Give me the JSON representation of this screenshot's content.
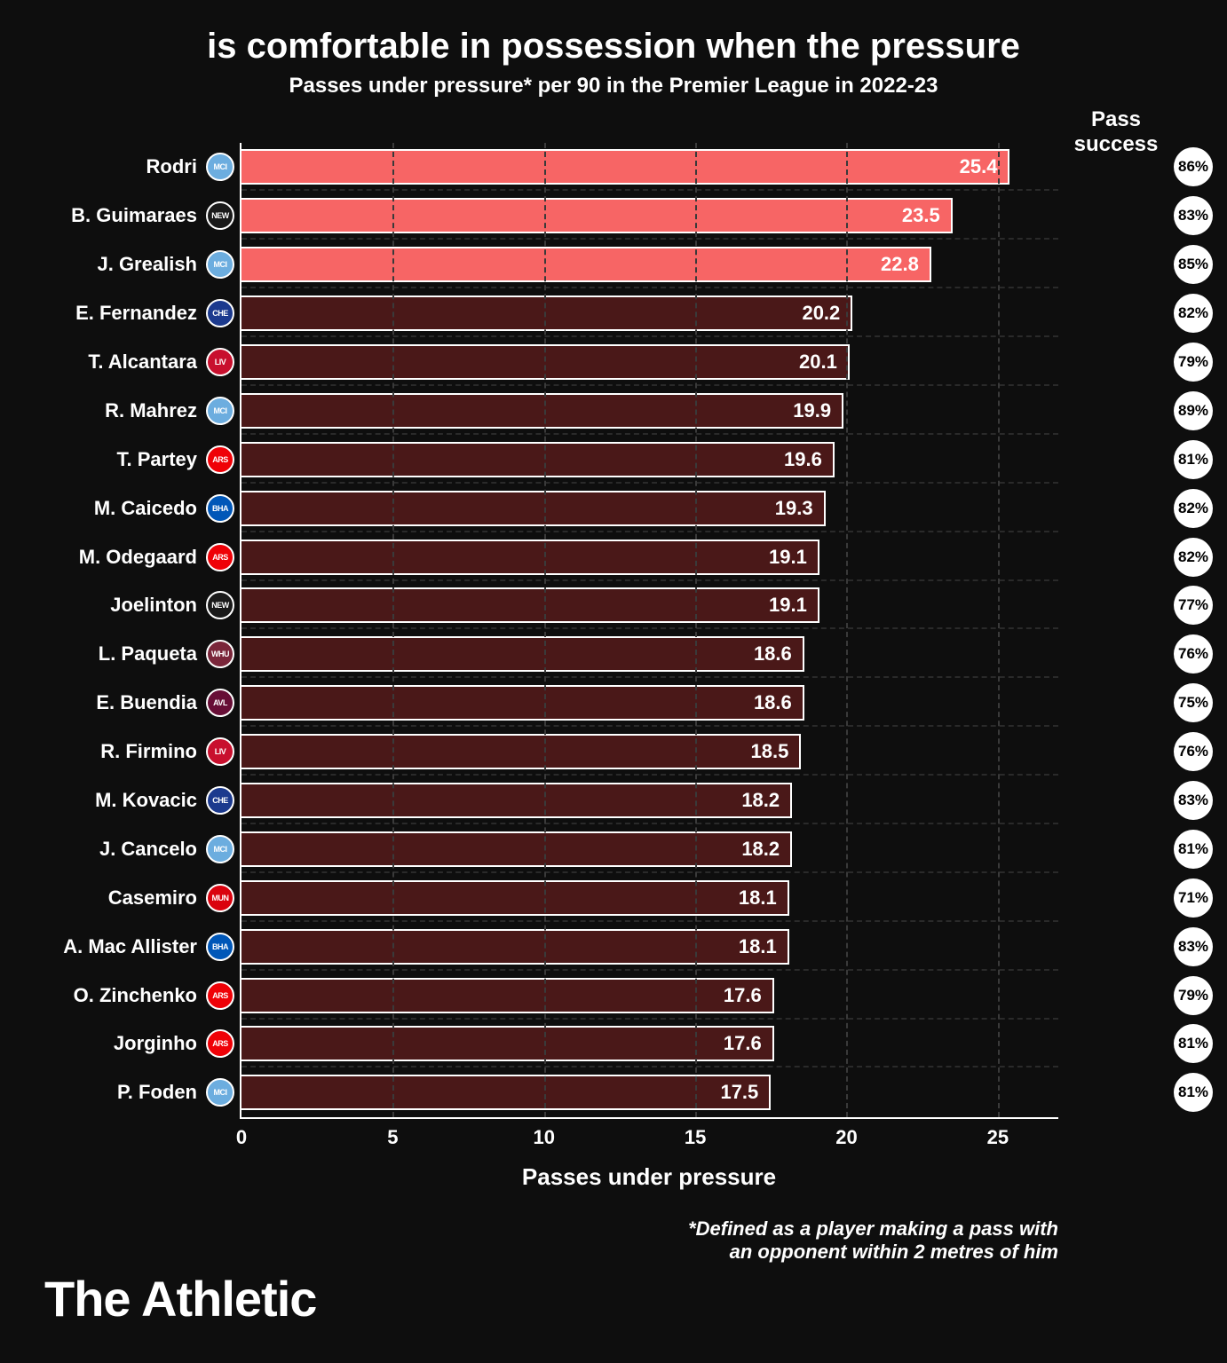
{
  "title": "is comfortable in possession when the pressure",
  "subtitle": "Passes under pressure* per 90 in the Premier League in 2022-23",
  "pass_success_header": "Pass success",
  "xlabel": "Passes under pressure",
  "footnote_line1": "*Defined as a player making a pass with",
  "footnote_line2": "an opponent within 2 metres of him",
  "brand": "The Athletic",
  "chart": {
    "type": "bar-horizontal",
    "xlim": [
      0,
      27
    ],
    "xticks": [
      0,
      5,
      10,
      15,
      20,
      25
    ],
    "background_color": "#0e0e0e",
    "grid_color": "#3a3a3a",
    "bar_border_color": "#ffffff",
    "highlight_color": "#f76565",
    "dim_color": "#4a1818",
    "text_color": "#ffffff",
    "title_fontsize": 40,
    "subtitle_fontsize": 24,
    "label_fontsize": 22,
    "axis_fontsize": 22,
    "pct_badge_bg": "#ffffff",
    "pct_badge_fg": "#000000",
    "rows": [
      {
        "player": "Rodri",
        "value": 25.4,
        "pct": "86%",
        "club": "MCI",
        "club_bg": "#6caddf",
        "highlight": true
      },
      {
        "player": "B. Guimaraes",
        "value": 23.5,
        "pct": "83%",
        "club": "NEW",
        "club_bg": "#1a1a1a",
        "highlight": true
      },
      {
        "player": "J. Grealish",
        "value": 22.8,
        "pct": "85%",
        "club": "MCI",
        "club_bg": "#6caddf",
        "highlight": true
      },
      {
        "player": "E. Fernandez",
        "value": 20.2,
        "pct": "82%",
        "club": "CHE",
        "club_bg": "#1c3a8e",
        "highlight": false
      },
      {
        "player": "T. Alcantara",
        "value": 20.1,
        "pct": "79%",
        "club": "LIV",
        "club_bg": "#c8102e",
        "highlight": false
      },
      {
        "player": "R. Mahrez",
        "value": 19.9,
        "pct": "89%",
        "club": "MCI",
        "club_bg": "#6caddf",
        "highlight": false
      },
      {
        "player": "T. Partey",
        "value": 19.6,
        "pct": "81%",
        "club": "ARS",
        "club_bg": "#ef0107",
        "highlight": false
      },
      {
        "player": "M. Caicedo",
        "value": 19.3,
        "pct": "82%",
        "club": "BHA",
        "club_bg": "#0057b8",
        "highlight": false
      },
      {
        "player": "M. Odegaard",
        "value": 19.1,
        "pct": "82%",
        "club": "ARS",
        "club_bg": "#ef0107",
        "highlight": false
      },
      {
        "player": "Joelinton",
        "value": 19.1,
        "pct": "77%",
        "club": "NEW",
        "club_bg": "#1a1a1a",
        "highlight": false
      },
      {
        "player": "L. Paqueta",
        "value": 18.6,
        "pct": "76%",
        "club": "WHU",
        "club_bg": "#7a263a",
        "highlight": false
      },
      {
        "player": "E. Buendia",
        "value": 18.6,
        "pct": "75%",
        "club": "AVL",
        "club_bg": "#670e36",
        "highlight": false
      },
      {
        "player": "R. Firmino",
        "value": 18.5,
        "pct": "76%",
        "club": "LIV",
        "club_bg": "#c8102e",
        "highlight": false
      },
      {
        "player": "M. Kovacic",
        "value": 18.2,
        "pct": "83%",
        "club": "CHE",
        "club_bg": "#1c3a8e",
        "highlight": false
      },
      {
        "player": "J. Cancelo",
        "value": 18.2,
        "pct": "81%",
        "club": "MCI",
        "club_bg": "#6caddf",
        "highlight": false
      },
      {
        "player": "Casemiro",
        "value": 18.1,
        "pct": "71%",
        "club": "MUN",
        "club_bg": "#da020e",
        "highlight": false
      },
      {
        "player": "A. Mac Allister",
        "value": 18.1,
        "pct": "83%",
        "club": "BHA",
        "club_bg": "#0057b8",
        "highlight": false
      },
      {
        "player": "O. Zinchenko",
        "value": 17.6,
        "pct": "79%",
        "club": "ARS",
        "club_bg": "#ef0107",
        "highlight": false
      },
      {
        "player": "Jorginho",
        "value": 17.6,
        "pct": "81%",
        "club": "ARS",
        "club_bg": "#ef0107",
        "highlight": false
      },
      {
        "player": "P. Foden",
        "value": 17.5,
        "pct": "81%",
        "club": "MCI",
        "club_bg": "#6caddf",
        "highlight": false
      }
    ]
  }
}
